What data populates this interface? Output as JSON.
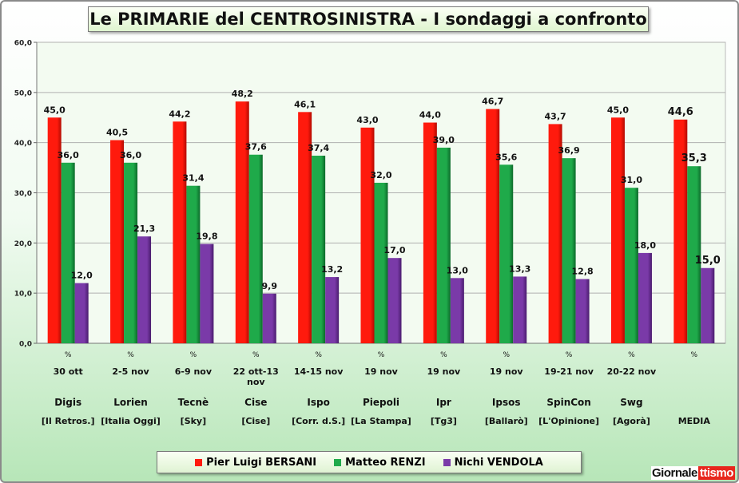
{
  "title": "Le PRIMARIE del CENTROSINISTRA - I sondaggi a confronto",
  "brand": {
    "part1": "Giornale",
    "part2": "ttismo"
  },
  "colors": {
    "bersani": "#ff1a0d",
    "renzi": "#1faa4a",
    "vendola": "#7a3aa8",
    "bersani_dark": "#b30a00",
    "renzi_dark": "#0c6a2a",
    "vendola_dark": "#4a1c6e"
  },
  "chart_data": {
    "type": "bar",
    "title": "Le PRIMARIE del CENTROSINISTRA - I sondaggi a confronto",
    "ylim": [
      0,
      60
    ],
    "yticks": [
      "0,0",
      "10,0",
      "20,0",
      "30,0",
      "40,0",
      "50,0",
      "60,0"
    ],
    "grid": true,
    "legend_position": "bottom",
    "categories": [
      {
        "unit": "%",
        "date": [
          "30 ott"
        ],
        "institute": "Digis",
        "source": "[Il Retros.]"
      },
      {
        "unit": "%",
        "date": [
          "2-5 nov"
        ],
        "institute": "Lorien",
        "source": "[Italia Oggi]"
      },
      {
        "unit": "%",
        "date": [
          "6-9 nov"
        ],
        "institute": "Tecnè",
        "source": "[Sky]"
      },
      {
        "unit": "%",
        "date": [
          "22 ott-13",
          "nov"
        ],
        "institute": "Cise",
        "source": "[Cise]"
      },
      {
        "unit": "%",
        "date": [
          "14-15 nov"
        ],
        "institute": "Ispo",
        "source": "[Corr. d.S.]"
      },
      {
        "unit": "%",
        "date": [
          "19 nov"
        ],
        "institute": "Piepoli",
        "source": "[La Stampa]"
      },
      {
        "unit": "%",
        "date": [
          "19 nov"
        ],
        "institute": "Ipr",
        "source": "[Tg3]"
      },
      {
        "unit": "%",
        "date": [
          "19 nov"
        ],
        "institute": "Ipsos",
        "source": "[Ballarò]"
      },
      {
        "unit": "%",
        "date": [
          "19-21 nov"
        ],
        "institute": "SpinCon",
        "source": "[L'Opinione]"
      },
      {
        "unit": "%",
        "date": [
          "20-22 nov"
        ],
        "institute": "Swg",
        "source": "[Agorà]"
      },
      {
        "unit": "%",
        "date": [
          ""
        ],
        "institute": "",
        "source": "MEDIA"
      }
    ],
    "series": [
      {
        "name": "Pier Luigi BERSANI",
        "color_key": "bersani",
        "values": [
          45.0,
          40.5,
          44.2,
          48.2,
          46.1,
          43.0,
          44.0,
          46.7,
          43.7,
          45.0,
          44.6
        ],
        "labels": [
          "45,0",
          "40,5",
          "44,2",
          "48,2",
          "46,1",
          "43,0",
          "44,0",
          "46,7",
          "43,7",
          "45,0",
          "44,6"
        ]
      },
      {
        "name": "Matteo RENZI",
        "color_key": "renzi",
        "values": [
          36.0,
          36.0,
          31.4,
          37.6,
          37.4,
          32.0,
          39.0,
          35.6,
          36.9,
          31.0,
          35.3
        ],
        "labels": [
          "36,0",
          "36,0",
          "31,4",
          "37,6",
          "37,4",
          "32,0",
          "39,0",
          "35,6",
          "36,9",
          "31,0",
          "35,3"
        ]
      },
      {
        "name": "Nichi VENDOLA",
        "color_key": "vendola",
        "values": [
          12.0,
          21.3,
          19.8,
          9.9,
          13.2,
          17.0,
          13.0,
          13.3,
          12.8,
          18.0,
          15.0
        ],
        "labels": [
          "12,0",
          "21,3",
          "19,8",
          "9,9",
          "13,2",
          "17,0",
          "13,0",
          "13,3",
          "12,8",
          "18,0",
          "15,0"
        ]
      }
    ]
  }
}
